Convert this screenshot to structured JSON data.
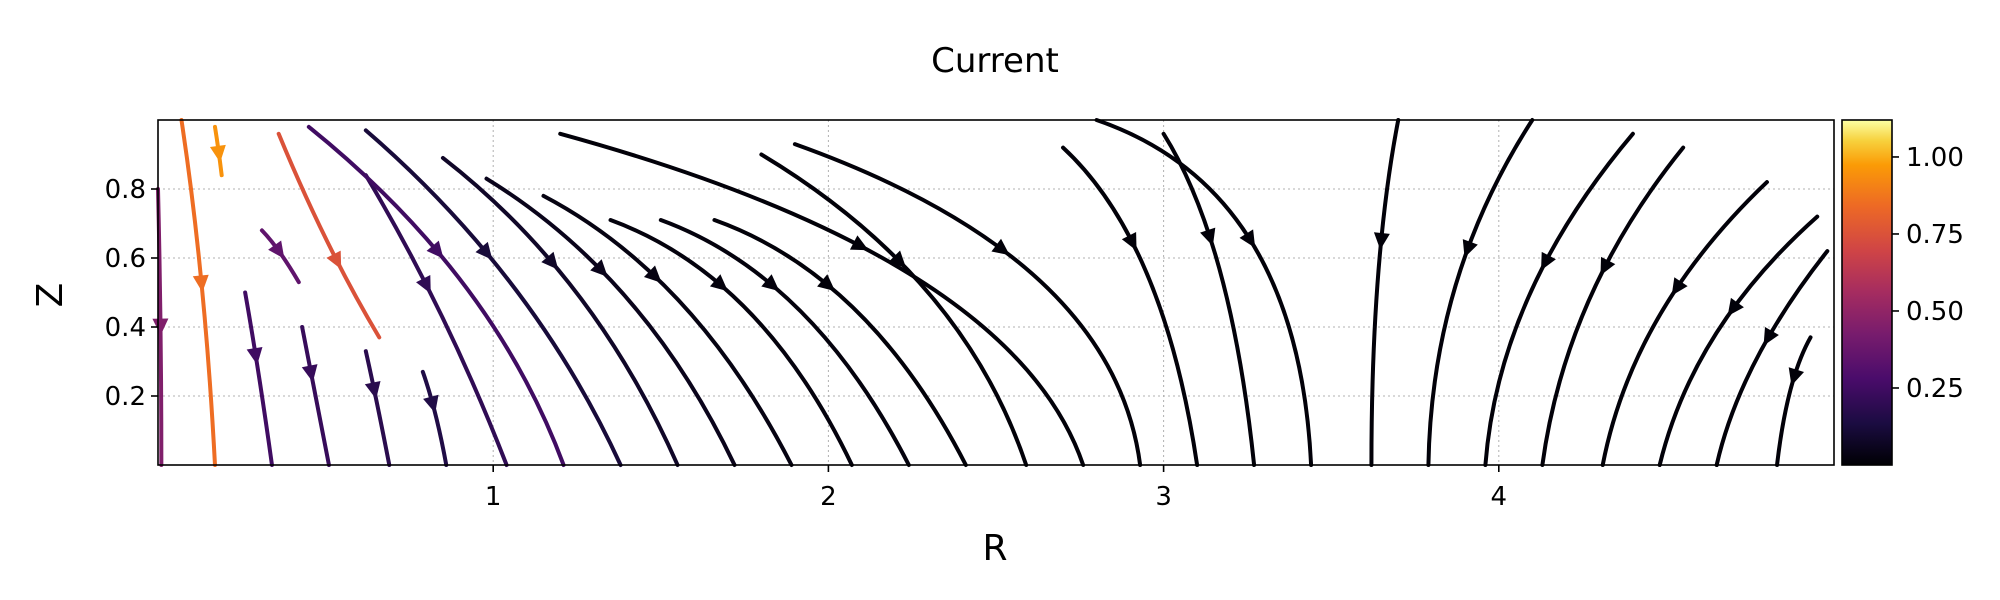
{
  "chart_data": {
    "type": "streamplot",
    "title": "Current",
    "xlabel": "R",
    "ylabel": "Z",
    "xlim": [
      0.0,
      5.0
    ],
    "ylim": [
      0.0,
      1.0
    ],
    "x_ticks": [
      1,
      2,
      3,
      4
    ],
    "x_tick_labels": [
      "1",
      "2",
      "3",
      "4"
    ],
    "y_ticks": [
      0.2,
      0.4,
      0.6,
      0.8
    ],
    "y_tick_labels": [
      "0.2",
      "0.4",
      "0.6",
      "0.8"
    ],
    "grid": true,
    "colormap": "inferno",
    "colorbar": {
      "range": [
        0.0,
        1.12
      ],
      "ticks": [
        0.25,
        0.5,
        0.75,
        1.0
      ],
      "tick_labels": [
        "0.25",
        "0.50",
        "0.75",
        "1.00"
      ]
    },
    "streamlines": [
      {
        "points": [
          [
            0.01,
            0.0
          ],
          [
            0.01,
            0.4
          ],
          [
            0.0,
            0.8
          ]
        ],
        "magnitude": 0.45,
        "arrow_at": 0.5
      },
      {
        "points": [
          [
            0.17,
            0.0
          ],
          [
            0.14,
            0.55
          ],
          [
            0.07,
            1.0
          ]
        ],
        "magnitude": 0.85,
        "arrow_at": 0.5
      },
      {
        "points": [
          [
            0.34,
            0.0
          ],
          [
            0.3,
            0.28
          ],
          [
            0.26,
            0.5
          ]
        ],
        "magnitude": 0.25,
        "arrow_at": 0.6
      },
      {
        "points": [
          [
            0.51,
            0.0
          ],
          [
            0.46,
            0.25
          ],
          [
            0.43,
            0.4
          ]
        ],
        "magnitude": 0.22,
        "arrow_at": 0.6
      },
      {
        "points": [
          [
            0.69,
            0.0
          ],
          [
            0.65,
            0.2
          ],
          [
            0.62,
            0.33
          ]
        ],
        "magnitude": 0.18,
        "arrow_at": 0.6
      },
      {
        "points": [
          [
            0.86,
            0.0
          ],
          [
            0.83,
            0.16
          ],
          [
            0.79,
            0.27
          ]
        ],
        "magnitude": 0.15,
        "arrow_at": 0.6
      },
      {
        "points": [
          [
            0.19,
            0.84
          ],
          [
            0.18,
            0.92
          ],
          [
            0.17,
            0.98
          ]
        ],
        "magnitude": 0.95,
        "arrow_at": 0.4
      },
      {
        "points": [
          [
            0.42,
            0.53
          ],
          [
            0.36,
            0.63
          ],
          [
            0.31,
            0.68
          ]
        ],
        "magnitude": 0.35,
        "arrow_at": 0.5
      },
      {
        "points": [
          [
            0.66,
            0.37
          ],
          [
            0.5,
            0.63
          ],
          [
            0.36,
            0.96
          ]
        ],
        "magnitude": 0.75,
        "arrow_at": 0.4
      },
      {
        "points": [
          [
            1.04,
            0.0
          ],
          [
            0.86,
            0.45
          ],
          [
            0.62,
            0.84
          ]
        ],
        "magnitude": 0.2,
        "arrow_at": 0.6
      },
      {
        "points": [
          [
            1.21,
            0.0
          ],
          [
            1.0,
            0.55
          ],
          [
            0.45,
            0.98
          ]
        ],
        "magnitude": 0.25,
        "arrow_at": 0.6
      },
      {
        "points": [
          [
            1.38,
            0.0
          ],
          [
            1.12,
            0.55
          ],
          [
            0.62,
            0.97
          ]
        ],
        "magnitude": 0.12,
        "arrow_at": 0.6
      },
      {
        "points": [
          [
            1.55,
            0.0
          ],
          [
            1.3,
            0.55
          ],
          [
            0.85,
            0.89
          ]
        ],
        "magnitude": 0.08,
        "arrow_at": 0.6
      },
      {
        "points": [
          [
            1.72,
            0.0
          ],
          [
            1.45,
            0.55
          ],
          [
            0.98,
            0.83
          ]
        ],
        "magnitude": 0.05,
        "arrow_at": 0.6
      },
      {
        "points": [
          [
            1.89,
            0.0
          ],
          [
            1.6,
            0.55
          ],
          [
            1.15,
            0.78
          ]
        ],
        "magnitude": 0.03,
        "arrow_at": 0.6
      },
      {
        "points": [
          [
            2.07,
            0.0
          ],
          [
            1.8,
            0.55
          ],
          [
            1.35,
            0.71
          ]
        ],
        "magnitude": 0.02,
        "arrow_at": 0.6
      },
      {
        "points": [
          [
            2.24,
            0.0
          ],
          [
            1.95,
            0.55
          ],
          [
            1.5,
            0.71
          ]
        ],
        "magnitude": 0.02,
        "arrow_at": 0.6
      },
      {
        "points": [
          [
            2.41,
            0.0
          ],
          [
            2.12,
            0.55
          ],
          [
            1.66,
            0.71
          ]
        ],
        "magnitude": 0.01,
        "arrow_at": 0.6
      },
      {
        "points": [
          [
            2.59,
            0.0
          ],
          [
            2.4,
            0.55
          ],
          [
            1.8,
            0.9
          ]
        ],
        "magnitude": 0.01,
        "arrow_at": 0.6
      },
      {
        "points": [
          [
            2.76,
            0.0
          ],
          [
            2.55,
            0.6
          ],
          [
            1.2,
            0.96
          ]
        ],
        "magnitude": 0.01,
        "arrow_at": 0.6
      },
      {
        "points": [
          [
            2.93,
            0.0
          ],
          [
            2.85,
            0.6
          ],
          [
            1.9,
            0.93
          ]
        ],
        "magnitude": 0.01,
        "arrow_at": 0.6
      },
      {
        "points": [
          [
            3.1,
            0.0
          ],
          [
            3.0,
            0.65
          ],
          [
            2.7,
            0.92
          ]
        ],
        "magnitude": 0.01,
        "arrow_at": 0.6
      },
      {
        "points": [
          [
            3.27,
            0.0
          ],
          [
            3.2,
            0.65
          ],
          [
            3.0,
            0.96
          ]
        ],
        "magnitude": 0.01,
        "arrow_at": 0.6
      },
      {
        "points": [
          [
            3.44,
            0.0
          ],
          [
            3.4,
            0.8
          ],
          [
            2.8,
            1.0
          ]
        ],
        "magnitude": 0.01,
        "arrow_at": 0.5
      },
      {
        "points": [
          [
            3.62,
            0.0
          ],
          [
            3.62,
            0.6
          ],
          [
            3.7,
            1.0
          ]
        ],
        "magnitude": 0.01,
        "arrow_at": 0.6
      },
      {
        "points": [
          [
            3.79,
            0.0
          ],
          [
            3.8,
            0.55
          ],
          [
            4.1,
            1.0
          ]
        ],
        "magnitude": 0.01,
        "arrow_at": 0.6
      },
      {
        "points": [
          [
            3.96,
            0.0
          ],
          [
            4.0,
            0.5
          ],
          [
            4.4,
            0.96
          ]
        ],
        "magnitude": 0.01,
        "arrow_at": 0.6
      },
      {
        "points": [
          [
            4.13,
            0.0
          ],
          [
            4.2,
            0.5
          ],
          [
            4.55,
            0.92
          ]
        ],
        "magnitude": 0.01,
        "arrow_at": 0.6
      },
      {
        "points": [
          [
            4.31,
            0.0
          ],
          [
            4.4,
            0.45
          ],
          [
            4.8,
            0.82
          ]
        ],
        "magnitude": 0.01,
        "arrow_at": 0.6
      },
      {
        "points": [
          [
            4.48,
            0.0
          ],
          [
            4.58,
            0.4
          ],
          [
            4.95,
            0.72
          ]
        ],
        "magnitude": 0.01,
        "arrow_at": 0.6
      },
      {
        "points": [
          [
            4.65,
            0.0
          ],
          [
            4.72,
            0.3
          ],
          [
            4.98,
            0.62
          ]
        ],
        "magnitude": 0.01,
        "arrow_at": 0.6
      },
      {
        "points": [
          [
            4.83,
            0.0
          ],
          [
            4.86,
            0.25
          ],
          [
            4.93,
            0.37
          ]
        ],
        "magnitude": 0.01,
        "arrow_at": 0.6
      }
    ]
  }
}
